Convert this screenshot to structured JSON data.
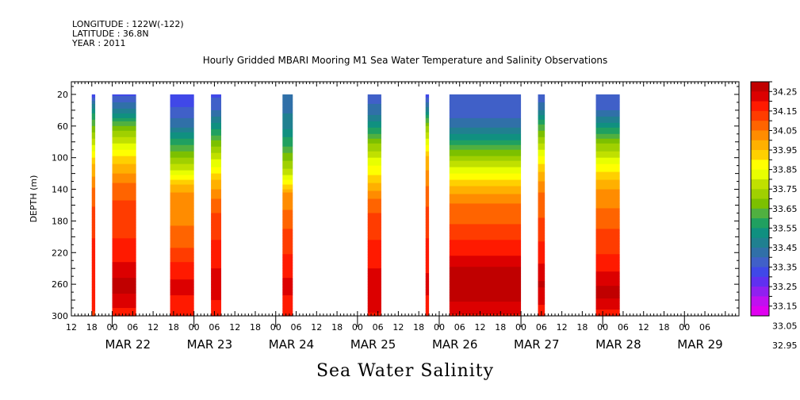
{
  "header": {
    "longitude": "LONGITUDE : 122W(-122)",
    "latitude": "LATITUDE : 36.8N",
    "year": "YEAR : 2011"
  },
  "chart_data": {
    "type": "heatmap",
    "title": "Hourly Gridded MBARI Mooring M1 Sea Water Temperature and Salinity Observations",
    "xlabel": "Sea Water Salinity",
    "ylabel": "DEPTH (m)",
    "y_range": [
      0,
      300
    ],
    "y_reversed": true,
    "y_ticks": [
      20,
      60,
      100,
      140,
      180,
      220,
      260,
      300
    ],
    "x_range_hours": [
      0,
      196
    ],
    "x_hour_ticks": [
      "12",
      "18",
      "00",
      "06",
      "12",
      "18",
      "00",
      "06",
      "12",
      "18",
      "00",
      "06",
      "12",
      "18",
      "00",
      "06",
      "12",
      "18",
      "00",
      "06",
      "12",
      "18",
      "00",
      "06",
      "12",
      "18",
      "00",
      "06",
      "12",
      "18",
      "00",
      "06"
    ],
    "x_day_labels": [
      "MAR 22",
      "MAR 23",
      "MAR 24",
      "MAR 25",
      "MAR 26",
      "MAR 27",
      "MAR 28",
      "MAR 29"
    ],
    "colorbar": {
      "labels": [
        "34.25",
        "34.15",
        "34.05",
        "33.95",
        "33.85",
        "33.75",
        "33.65",
        "33.55",
        "33.45",
        "33.35",
        "33.25",
        "33.15",
        "33.05",
        "32.95"
      ],
      "colors": [
        "#c00000",
        "#dc0000",
        "#ff1a00",
        "#ff3c00",
        "#ff6400",
        "#ff8c00",
        "#ffb000",
        "#ffd000",
        "#ffff00",
        "#e8ff00",
        "#c0e000",
        "#a0d000",
        "#7cc000",
        "#50b040",
        "#20a060",
        "#109080",
        "#208090",
        "#3070a8",
        "#4060c8",
        "#4048e8",
        "#6030f0",
        "#9020f0",
        "#c010f0",
        "#e000f0"
      ]
    },
    "segments": [
      {
        "start": 6.0,
        "end": 7.0,
        "profile": [
          [
            20,
            33.15
          ],
          [
            40,
            33.4
          ],
          [
            70,
            33.62
          ],
          [
            110,
            33.9
          ],
          [
            150,
            34.05
          ],
          [
            220,
            34.15
          ],
          [
            260,
            34.15
          ],
          [
            300,
            34.12
          ]
        ]
      },
      {
        "start": 12.0,
        "end": 19.0,
        "profile": [
          [
            20,
            33.18
          ],
          [
            40,
            33.32
          ],
          [
            60,
            33.55
          ],
          [
            80,
            33.7
          ],
          [
            100,
            33.85
          ],
          [
            120,
            33.95
          ],
          [
            140,
            34.05
          ],
          [
            200,
            34.12
          ],
          [
            240,
            34.2
          ],
          [
            260,
            34.27
          ],
          [
            280,
            34.22
          ],
          [
            300,
            34.15
          ]
        ]
      },
      {
        "start": 29.0,
        "end": 36.0,
        "profile": [
          [
            20,
            33.15
          ],
          [
            40,
            33.2
          ],
          [
            60,
            33.3
          ],
          [
            80,
            33.45
          ],
          [
            100,
            33.6
          ],
          [
            120,
            33.75
          ],
          [
            135,
            33.9
          ],
          [
            150,
            33.98
          ],
          [
            200,
            34.02
          ],
          [
            230,
            34.12
          ],
          [
            260,
            34.2
          ],
          [
            300,
            34.15
          ]
        ]
      },
      {
        "start": 41.0,
        "end": 44.0,
        "profile": [
          [
            20,
            33.18
          ],
          [
            40,
            33.25
          ],
          [
            60,
            33.4
          ],
          [
            80,
            33.55
          ],
          [
            100,
            33.7
          ],
          [
            130,
            33.9
          ],
          [
            160,
            34.05
          ],
          [
            220,
            34.15
          ],
          [
            260,
            34.22
          ],
          [
            300,
            34.15
          ]
        ]
      },
      {
        "start": 62.0,
        "end": 65.0,
        "profile": [
          [
            20,
            33.28
          ],
          [
            40,
            33.3
          ],
          [
            60,
            33.35
          ],
          [
            80,
            33.45
          ],
          [
            100,
            33.58
          ],
          [
            120,
            33.7
          ],
          [
            145,
            33.95
          ],
          [
            180,
            34.05
          ],
          [
            220,
            34.12
          ],
          [
            260,
            34.2
          ],
          [
            300,
            34.15
          ]
        ]
      },
      {
        "start": 87.0,
        "end": 91.0,
        "profile": [
          [
            20,
            33.22
          ],
          [
            40,
            33.27
          ],
          [
            60,
            33.4
          ],
          [
            80,
            33.58
          ],
          [
            100,
            33.72
          ],
          [
            130,
            33.88
          ],
          [
            160,
            34.05
          ],
          [
            220,
            34.15
          ],
          [
            260,
            34.22
          ],
          [
            300,
            34.18
          ]
        ]
      },
      {
        "start": 104.0,
        "end": 105.0,
        "profile": [
          [
            20,
            33.15
          ],
          [
            40,
            33.35
          ],
          [
            60,
            33.6
          ],
          [
            100,
            33.9
          ],
          [
            150,
            34.05
          ],
          [
            220,
            34.15
          ],
          [
            260,
            34.2
          ],
          [
            300,
            34.15
          ]
        ]
      },
      {
        "start": 111.0,
        "end": 132.0,
        "profile": [
          [
            20,
            33.22
          ],
          [
            50,
            33.25
          ],
          [
            65,
            33.32
          ],
          [
            80,
            33.45
          ],
          [
            100,
            33.62
          ],
          [
            120,
            33.78
          ],
          [
            140,
            33.92
          ],
          [
            160,
            34.02
          ],
          [
            190,
            34.08
          ],
          [
            220,
            34.17
          ],
          [
            240,
            34.25
          ],
          [
            270,
            34.28
          ],
          [
            300,
            34.18
          ]
        ]
      },
      {
        "start": 137.0,
        "end": 139.0,
        "profile": [
          [
            20,
            33.2
          ],
          [
            40,
            33.3
          ],
          [
            60,
            33.5
          ],
          [
            80,
            33.65
          ],
          [
            110,
            33.85
          ],
          [
            140,
            34.0
          ],
          [
            220,
            34.15
          ],
          [
            260,
            34.25
          ],
          [
            300,
            34.15
          ]
        ]
      },
      {
        "start": 154.0,
        "end": 161.0,
        "profile": [
          [
            20,
            33.2
          ],
          [
            40,
            33.25
          ],
          [
            60,
            33.4
          ],
          [
            80,
            33.58
          ],
          [
            100,
            33.72
          ],
          [
            120,
            33.85
          ],
          [
            140,
            33.95
          ],
          [
            180,
            34.05
          ],
          [
            220,
            34.12
          ],
          [
            250,
            34.2
          ],
          [
            270,
            34.27
          ],
          [
            300,
            34.15
          ]
        ]
      }
    ]
  }
}
